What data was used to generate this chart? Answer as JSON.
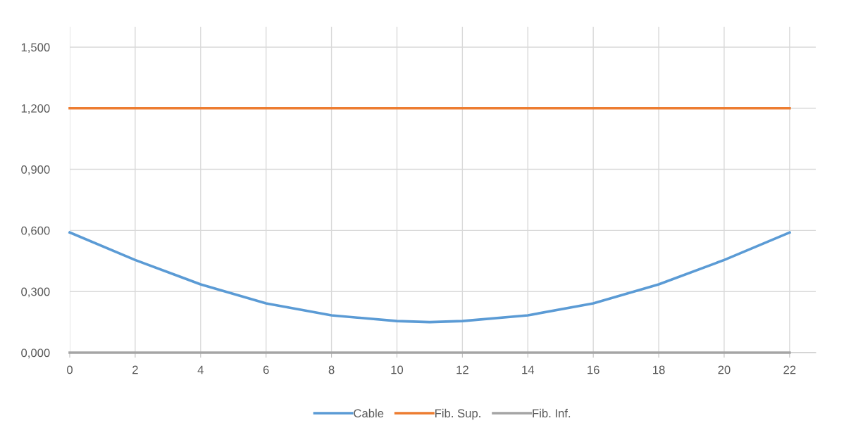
{
  "chart_data": {
    "type": "line",
    "x": [
      0,
      2,
      4,
      6,
      8,
      10,
      11,
      12,
      14,
      16,
      18,
      20,
      22
    ],
    "series": [
      {
        "name": "Cable",
        "color": "#5b9bd5",
        "values": [
          0.59,
          0.455,
          0.335,
          0.242,
          0.183,
          0.155,
          0.15,
          0.155,
          0.183,
          0.242,
          0.335,
          0.455,
          0.59
        ]
      },
      {
        "name": "Fib. Sup.",
        "color": "#ed7d31",
        "values": [
          1.2,
          1.2,
          1.2,
          1.2,
          1.2,
          1.2,
          1.2,
          1.2,
          1.2,
          1.2,
          1.2,
          1.2,
          1.2
        ]
      },
      {
        "name": "Fib. Inf.",
        "color": "#a5a5a5",
        "values": [
          0,
          0,
          0,
          0,
          0,
          0,
          0,
          0,
          0,
          0,
          0,
          0,
          0
        ]
      }
    ],
    "xlim": [
      0,
      22.8
    ],
    "xticks": [
      0,
      2,
      4,
      6,
      8,
      10,
      12,
      14,
      16,
      18,
      20,
      22
    ],
    "ylim": [
      0,
      1.6
    ],
    "yticks": [
      {
        "value": 0,
        "label": "0,000"
      },
      {
        "value": 0.3,
        "label": "0,300"
      },
      {
        "value": 0.6,
        "label": "0,600"
      },
      {
        "value": 0.9,
        "label": "0,900"
      },
      {
        "value": 1.2,
        "label": "1,200"
      },
      {
        "value": 1.5,
        "label": "1,500"
      }
    ],
    "grid": true,
    "legend": "bottom",
    "marker": "none",
    "line_style": "solid"
  }
}
